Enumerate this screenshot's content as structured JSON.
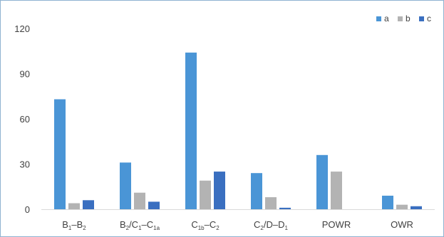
{
  "chart_data": {
    "type": "bar",
    "series_colors": [
      "#4a95d6",
      "#b3b3b3",
      "#3a6fc0"
    ],
    "categories": [
      {
        "label": [
          {
            "t": "B"
          },
          {
            "t": "1",
            "sub": true
          },
          {
            "t": "–B"
          },
          {
            "t": "2",
            "sub": true
          }
        ]
      },
      {
        "label": [
          {
            "t": "B"
          },
          {
            "t": "2",
            "sub": true
          },
          {
            "t": "/C"
          },
          {
            "t": "1",
            "sub": true
          },
          {
            "t": "–C"
          },
          {
            "t": "1a",
            "sub": true
          }
        ]
      },
      {
        "label": [
          {
            "t": "C"
          },
          {
            "t": "1b",
            "sub": true
          },
          {
            "t": "–C"
          },
          {
            "t": "2",
            "sub": true
          }
        ]
      },
      {
        "label": [
          {
            "t": "C"
          },
          {
            "t": "2",
            "sub": true
          },
          {
            "t": "/D–D"
          },
          {
            "t": "1",
            "sub": true
          }
        ]
      },
      {
        "label": [
          {
            "t": "POWR"
          }
        ]
      },
      {
        "label": [
          {
            "t": "OWR"
          }
        ]
      }
    ],
    "series": [
      {
        "name": "a",
        "values": [
          73,
          31,
          104,
          24,
          36,
          9
        ]
      },
      {
        "name": "b",
        "values": [
          4,
          11,
          19,
          8,
          25,
          3
        ]
      },
      {
        "name": "c",
        "values": [
          6,
          5,
          25,
          1,
          0,
          2
        ]
      }
    ],
    "ylim": [
      0,
      120
    ],
    "yticks": [
      0,
      30,
      60,
      90,
      120
    ],
    "grid": false,
    "legend_position": "top-right"
  }
}
